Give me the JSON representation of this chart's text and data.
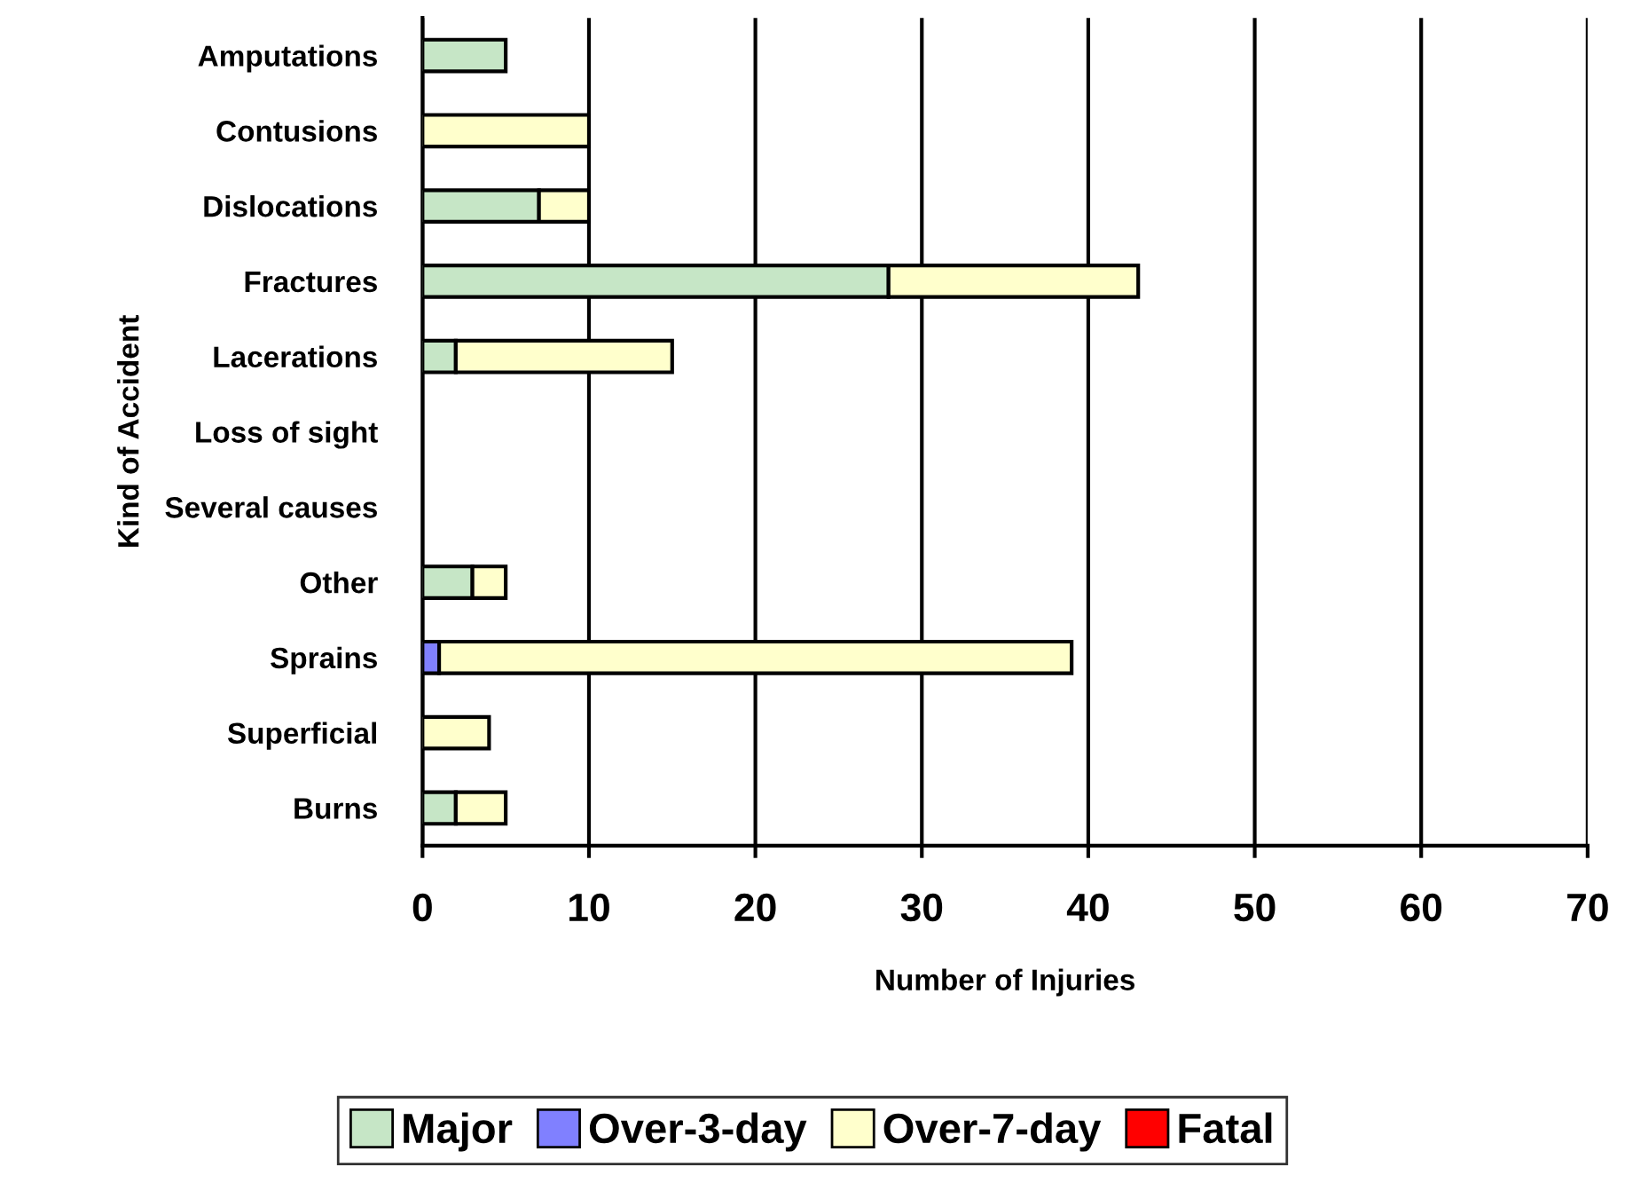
{
  "chart_data": {
    "type": "bar",
    "orientation": "horizontal",
    "stacked": true,
    "categories": [
      "Amputations",
      "Contusions",
      "Dislocations",
      "Fractures",
      "Lacerations",
      "Loss of sight",
      "Several causes",
      "Other",
      "Sprains",
      "Superficial",
      "Burns"
    ],
    "series": [
      {
        "name": "Major",
        "color": "#c6e6c6",
        "values": [
          5,
          0,
          7,
          28,
          2,
          0,
          0,
          3,
          0,
          0,
          2
        ]
      },
      {
        "name": "Over-3-day",
        "color": "#8080ff",
        "values": [
          0,
          0,
          0,
          0,
          0,
          0,
          0,
          0,
          1,
          0,
          0
        ]
      },
      {
        "name": "Over-7-day",
        "color": "#ffffcc",
        "values": [
          0,
          10,
          3,
          15,
          13,
          0,
          0,
          2,
          38,
          4,
          3
        ]
      },
      {
        "name": "Fatal",
        "color": "#ff0000",
        "values": [
          0,
          0,
          0,
          0,
          0,
          0,
          0,
          0,
          0,
          0,
          0
        ]
      }
    ],
    "xlim": [
      0,
      70
    ],
    "xticks": [
      0,
      10,
      20,
      30,
      40,
      50,
      60,
      70
    ],
    "xlabel": "Number of Injuries",
    "ylabel": "Kind of Accident",
    "grid": "x",
    "legend": "bottom"
  }
}
